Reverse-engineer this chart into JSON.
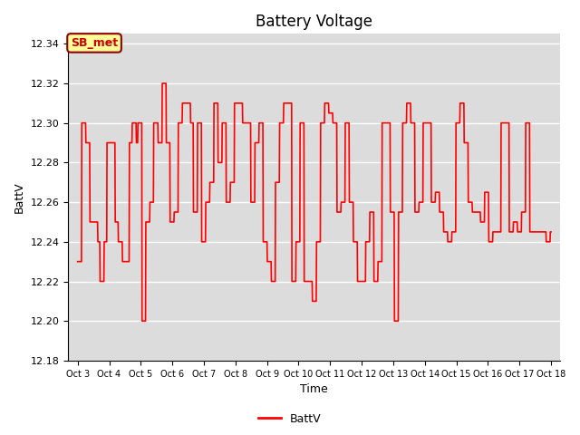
{
  "title": "Battery Voltage",
  "xlabel": "Time",
  "ylabel": "BattV",
  "legend_label": "BattV",
  "annotation": "SB_met",
  "ylim": [
    12.18,
    12.345
  ],
  "yticks": [
    12.18,
    12.2,
    12.22,
    12.24,
    12.26,
    12.28,
    12.3,
    12.32,
    12.34
  ],
  "xtick_labels": [
    "Oct 3",
    "Oct 4",
    "Oct 5",
    "Oct 6",
    "Oct 7",
    "Oct 8",
    "Oct 9",
    "Oct 10",
    "Oct 11",
    "Oct 12",
    "Oct 13",
    "Oct 14",
    "Oct 15",
    "Oct 16",
    "Oct 17",
    "Oct 18"
  ],
  "line_color": "#ff0000",
  "background_color": "#dcdcdc",
  "grid_color": "#ffffff",
  "annotation_bg": "#ffff99",
  "annotation_border": "#8b0000",
  "title_fontsize": 12,
  "axis_fontsize": 9,
  "tick_fontsize": 8,
  "x": [
    0.0,
    0.12,
    0.13,
    0.25,
    0.26,
    0.38,
    0.39,
    0.5,
    0.51,
    0.63,
    0.64,
    0.7,
    0.71,
    0.83,
    0.84,
    0.92,
    0.93,
    1.05,
    1.06,
    1.18,
    1.19,
    1.28,
    1.29,
    1.41,
    1.42,
    1.5,
    1.51,
    1.63,
    1.64,
    1.72,
    1.73,
    1.85,
    1.86,
    1.9,
    1.91,
    2.03,
    2.04,
    2.15,
    2.16,
    2.28,
    2.29,
    2.4,
    2.41,
    2.54,
    2.55,
    2.67,
    2.68,
    2.8,
    2.81,
    2.92,
    2.93,
    3.05,
    3.06,
    3.18,
    3.19,
    3.31,
    3.32,
    3.44,
    3.45,
    3.57,
    3.58,
    3.66,
    3.67,
    3.79,
    3.8,
    3.92,
    3.93,
    4.05,
    4.06,
    4.18,
    4.19,
    4.31,
    4.32,
    4.44,
    4.45,
    4.57,
    4.58,
    4.7,
    4.71,
    4.83,
    4.84,
    4.96,
    4.97,
    5.09,
    5.1,
    5.22,
    5.23,
    5.35,
    5.36,
    5.48,
    5.49,
    5.61,
    5.62,
    5.74,
    5.75,
    5.87,
    5.88,
    6.0,
    6.01,
    6.13,
    6.14,
    6.26,
    6.27,
    6.39,
    6.4,
    6.52,
    6.53,
    6.65,
    6.66,
    6.78,
    6.79,
    6.91,
    6.92,
    7.04,
    7.05,
    7.17,
    7.18,
    7.3,
    7.31,
    7.43,
    7.44,
    7.56,
    7.57,
    7.69,
    7.7,
    7.82,
    7.83,
    7.95,
    7.96,
    8.08,
    8.09,
    8.21,
    8.22,
    8.34,
    8.35,
    8.47,
    8.48,
    8.6,
    8.61,
    8.73,
    8.74,
    8.86,
    8.87,
    8.99,
    9.0,
    9.12,
    9.13,
    9.25,
    9.26,
    9.38,
    9.39,
    9.51,
    9.52,
    9.64,
    9.65,
    9.77,
    9.78,
    9.9,
    9.91,
    10.03,
    10.04,
    10.16,
    10.17,
    10.29,
    10.3,
    10.42,
    10.43,
    10.55,
    10.56,
    10.68,
    10.69,
    10.81,
    10.82,
    10.94,
    10.95,
    11.07,
    11.08,
    11.2,
    11.21,
    11.33,
    11.34,
    11.46,
    11.47,
    11.59,
    11.6,
    11.72,
    11.73,
    11.85,
    11.86,
    11.98,
    11.99,
    12.11,
    12.12,
    12.24,
    12.25,
    12.37,
    12.38,
    12.5,
    12.51,
    12.63,
    12.64,
    12.76,
    12.77,
    12.89,
    12.9,
    13.02,
    13.03,
    13.15,
    13.16,
    13.28,
    13.29,
    13.41,
    13.42,
    13.54,
    13.55,
    13.67,
    13.68,
    13.8,
    13.81,
    13.93,
    13.94,
    14.06,
    14.07,
    14.19,
    14.2,
    14.32,
    14.33,
    14.45,
    14.46,
    14.58,
    14.59,
    14.71,
    14.72,
    14.84,
    14.85,
    14.97,
    14.98,
    15.0
  ],
  "y": [
    12.23,
    12.23,
    12.3,
    12.3,
    12.29,
    12.29,
    12.25,
    12.25,
    12.25,
    12.25,
    12.24,
    12.24,
    12.22,
    12.22,
    12.24,
    12.24,
    12.29,
    12.29,
    12.29,
    12.29,
    12.25,
    12.25,
    12.24,
    12.24,
    12.23,
    12.23,
    12.23,
    12.23,
    12.29,
    12.29,
    12.3,
    12.3,
    12.29,
    12.29,
    12.3,
    12.3,
    12.2,
    12.2,
    12.25,
    12.25,
    12.26,
    12.26,
    12.3,
    12.3,
    12.29,
    12.29,
    12.32,
    12.32,
    12.29,
    12.29,
    12.25,
    12.25,
    12.255,
    12.255,
    12.3,
    12.3,
    12.31,
    12.31,
    12.31,
    12.31,
    12.3,
    12.3,
    12.255,
    12.255,
    12.3,
    12.3,
    12.24,
    12.24,
    12.26,
    12.26,
    12.27,
    12.27,
    12.31,
    12.31,
    12.28,
    12.28,
    12.3,
    12.3,
    12.26,
    12.26,
    12.27,
    12.27,
    12.31,
    12.31,
    12.31,
    12.31,
    12.3,
    12.3,
    12.3,
    12.3,
    12.26,
    12.26,
    12.29,
    12.29,
    12.3,
    12.3,
    12.24,
    12.24,
    12.23,
    12.23,
    12.22,
    12.22,
    12.27,
    12.27,
    12.3,
    12.3,
    12.31,
    12.31,
    12.31,
    12.31,
    12.22,
    12.22,
    12.24,
    12.24,
    12.3,
    12.3,
    12.22,
    12.22,
    12.22,
    12.22,
    12.21,
    12.21,
    12.24,
    12.24,
    12.3,
    12.3,
    12.31,
    12.31,
    12.305,
    12.305,
    12.3,
    12.3,
    12.255,
    12.255,
    12.26,
    12.26,
    12.3,
    12.3,
    12.26,
    12.26,
    12.24,
    12.24,
    12.22,
    12.22,
    12.22,
    12.22,
    12.24,
    12.24,
    12.255,
    12.255,
    12.22,
    12.22,
    12.23,
    12.23,
    12.3,
    12.3,
    12.3,
    12.3,
    12.255,
    12.255,
    12.2,
    12.2,
    12.255,
    12.255,
    12.3,
    12.3,
    12.31,
    12.31,
    12.3,
    12.3,
    12.255,
    12.255,
    12.26,
    12.26,
    12.3,
    12.3,
    12.3,
    12.3,
    12.26,
    12.26,
    12.265,
    12.265,
    12.255,
    12.255,
    12.245,
    12.245,
    12.24,
    12.24,
    12.245,
    12.245,
    12.3,
    12.3,
    12.31,
    12.31,
    12.29,
    12.29,
    12.26,
    12.26,
    12.255,
    12.255,
    12.255,
    12.255,
    12.25,
    12.25,
    12.265,
    12.265,
    12.24,
    12.24,
    12.245,
    12.245,
    12.245,
    12.245,
    12.3,
    12.3,
    12.3,
    12.3,
    12.245,
    12.245,
    12.25,
    12.25,
    12.245,
    12.245,
    12.255,
    12.255,
    12.3,
    12.3,
    12.245,
    12.245,
    12.245,
    12.245,
    12.245,
    12.245,
    12.245,
    12.245,
    12.24,
    12.24,
    12.245,
    12.245
  ]
}
